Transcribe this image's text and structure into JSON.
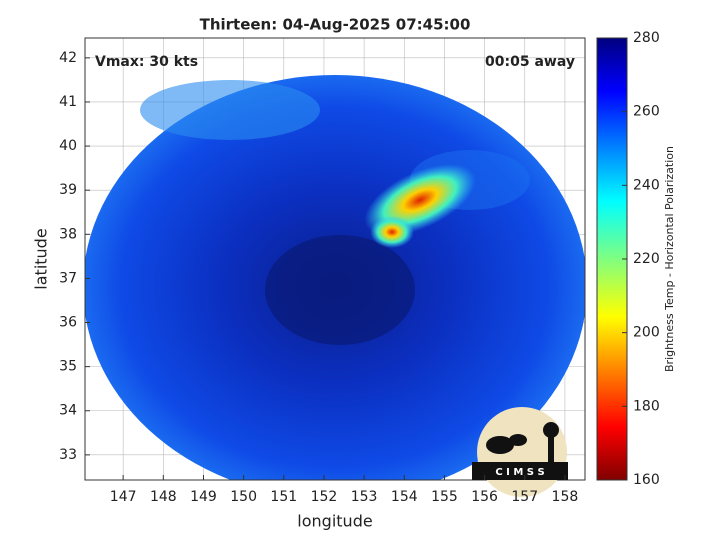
{
  "chart_data": {
    "type": "map",
    "title": "Thirteen: 04-Aug-2025 07:45:00",
    "annotations": [
      "Vmax: 30 kts",
      "00:05 away"
    ],
    "x_label": "longitude",
    "y_label": "latitude",
    "xlim": [
      146.05,
      158.5
    ],
    "xticks": [
      147,
      148,
      149,
      150,
      151,
      152,
      153,
      154,
      155,
      156,
      157,
      158
    ],
    "ylim": [
      32.43,
      42.45
    ],
    "yticks": [
      33,
      34,
      35,
      36,
      37,
      38,
      39,
      40,
      41,
      42
    ],
    "grid": true,
    "colorbar": {
      "label": "Brightness Temp - Horizontal Polarization",
      "lim": [
        160,
        280
      ],
      "ticks": [
        160,
        180,
        200,
        220,
        240,
        260,
        280
      ]
    },
    "logo": "C I M S S"
  }
}
